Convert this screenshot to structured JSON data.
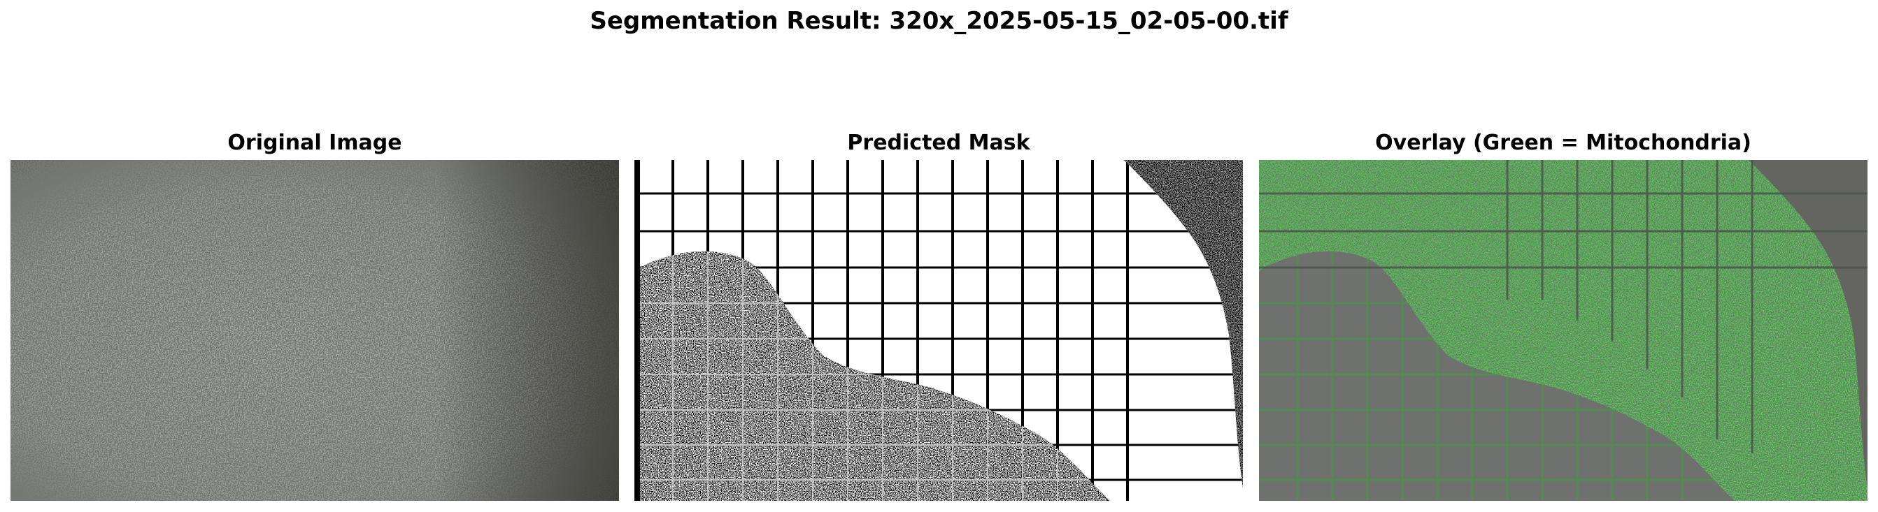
{
  "figure": {
    "title": "Segmentation Result: 320x_2025-05-15_02-05-00.tif"
  },
  "panels": [
    {
      "title": "Original Image"
    },
    {
      "title": "Predicted Mask"
    },
    {
      "title": "Overlay (Green = Mitochondria)"
    }
  ],
  "colors": {
    "background": "#ffffff",
    "original_base": "#9a9c98",
    "original_dark": "#3d3f3c",
    "mask_foreground": "#ffffff",
    "mask_background": "#000000",
    "overlay_green": "#5cc45a",
    "overlay_gray": "#6f716e"
  }
}
